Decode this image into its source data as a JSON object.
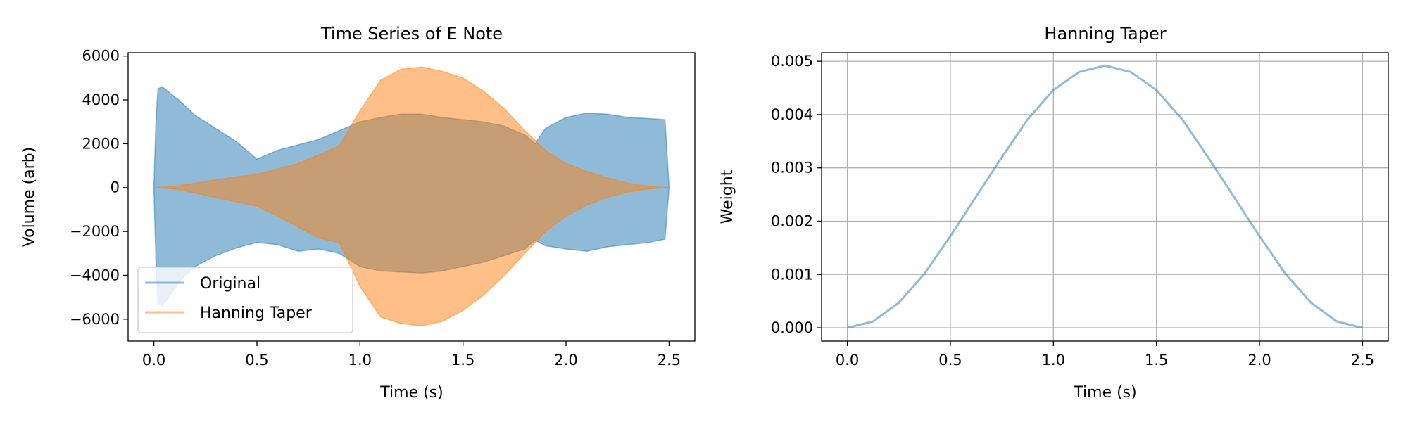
{
  "chart_data": [
    {
      "type": "area",
      "title": "Time Series of E Note",
      "xlabel": "Time (s)",
      "ylabel": "Volume (arb)",
      "xlim": [
        -0.125,
        2.625
      ],
      "ylim": [
        -7000,
        6150
      ],
      "xticks": [
        0.0,
        0.5,
        1.0,
        1.5,
        2.0,
        2.5
      ],
      "xtick_labels": [
        "0.0",
        "0.5",
        "1.0",
        "1.5",
        "2.0",
        "2.5"
      ],
      "yticks": [
        -6000,
        -4000,
        -2000,
        0,
        2000,
        4000,
        6000
      ],
      "ytick_labels": [
        "−6000",
        "−4000",
        "−2000",
        "0",
        "2000",
        "4000",
        "6000"
      ],
      "grid": false,
      "legend": "lower-left",
      "series": [
        {
          "name": "Original",
          "color": "#1f77b4",
          "alpha": 0.5,
          "x": [
            0.0,
            0.01,
            0.02,
            0.04,
            0.08,
            0.12,
            0.2,
            0.3,
            0.4,
            0.5,
            0.6,
            0.7,
            0.8,
            0.9,
            1.0,
            1.1,
            1.2,
            1.3,
            1.4,
            1.5,
            1.6,
            1.7,
            1.8,
            1.85,
            1.9,
            2.0,
            2.1,
            2.2,
            2.3,
            2.4,
            2.48,
            2.5
          ],
          "upper": [
            0,
            3000,
            4500,
            4600,
            4300,
            4000,
            3300,
            2700,
            2100,
            1300,
            1700,
            1950,
            2200,
            2600,
            3000,
            3200,
            3350,
            3350,
            3200,
            3100,
            3000,
            2800,
            2400,
            2000,
            2700,
            3200,
            3400,
            3350,
            3200,
            3150,
            3100,
            0
          ],
          "lower": [
            0,
            -3300,
            -5300,
            -5400,
            -4900,
            -4300,
            -3600,
            -3100,
            -2750,
            -2500,
            -2600,
            -2900,
            -2800,
            -3000,
            -3600,
            -3800,
            -3850,
            -3900,
            -3800,
            -3600,
            -3400,
            -3100,
            -2800,
            -2400,
            -2650,
            -2800,
            -2900,
            -2700,
            -2600,
            -2500,
            -2350,
            0
          ]
        },
        {
          "name": "Hanning Taper",
          "color": "#ff7f0e",
          "alpha": 0.5,
          "x": [
            0.0,
            0.1,
            0.2,
            0.3,
            0.4,
            0.5,
            0.6,
            0.7,
            0.8,
            0.9,
            1.0,
            1.1,
            1.2,
            1.3,
            1.4,
            1.5,
            1.6,
            1.7,
            1.8,
            1.9,
            2.0,
            2.1,
            2.2,
            2.3,
            2.4,
            2.5
          ],
          "upper": [
            0,
            60,
            200,
            350,
            500,
            600,
            850,
            1100,
            1500,
            1900,
            3500,
            4900,
            5400,
            5500,
            5300,
            5000,
            4400,
            3600,
            2600,
            1700,
            1100,
            750,
            450,
            200,
            60,
            0
          ],
          "lower": [
            0,
            -60,
            -250,
            -450,
            -650,
            -850,
            -1300,
            -1800,
            -2300,
            -2500,
            -4500,
            -5900,
            -6200,
            -6300,
            -6100,
            -5600,
            -4900,
            -4000,
            -3000,
            -2000,
            -1300,
            -800,
            -450,
            -200,
            -60,
            0
          ]
        }
      ]
    },
    {
      "type": "line",
      "title": "Hanning Taper",
      "xlabel": "Time (s)",
      "ylabel": "Weight",
      "xlim": [
        -0.125,
        2.625
      ],
      "ylim": [
        -0.00025,
        0.00516
      ],
      "xticks": [
        0.0,
        0.5,
        1.0,
        1.5,
        2.0,
        2.5
      ],
      "xtick_labels": [
        "0.0",
        "0.5",
        "1.0",
        "1.5",
        "2.0",
        "2.5"
      ],
      "yticks": [
        0.0,
        0.001,
        0.002,
        0.003,
        0.004,
        0.005
      ],
      "ytick_labels": [
        "0.000",
        "0.001",
        "0.002",
        "0.003",
        "0.004",
        "0.005"
      ],
      "grid": true,
      "series": [
        {
          "color": "#1f77b4",
          "alpha": 0.5,
          "x": [
            0.0,
            0.125,
            0.25,
            0.375,
            0.5,
            0.625,
            0.75,
            0.875,
            1.0,
            1.125,
            1.25,
            1.375,
            1.5,
            1.625,
            1.75,
            1.875,
            2.0,
            2.125,
            2.25,
            2.375,
            2.5
          ],
          "y": [
            0.0,
            0.00012,
            0.00047,
            0.00102,
            0.00172,
            0.00246,
            0.0032,
            0.00391,
            0.00446,
            0.0048,
            0.00492,
            0.0048,
            0.00446,
            0.00391,
            0.0032,
            0.00246,
            0.00172,
            0.00102,
            0.00047,
            0.00012,
            0.0
          ]
        }
      ]
    }
  ]
}
